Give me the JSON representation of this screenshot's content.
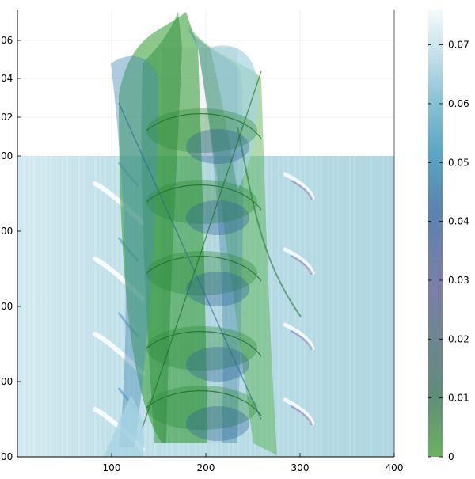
{
  "chart_data": {
    "type": "heatmap",
    "title": "",
    "xlabel": "",
    "ylabel": "",
    "xlim": [
      0,
      400
    ],
    "x_ticks": [
      {
        "value": 100,
        "label": "100"
      },
      {
        "value": 200,
        "label": "200"
      },
      {
        "value": 300,
        "label": "300"
      },
      {
        "value": 400,
        "label": "400"
      }
    ],
    "left_axis_ticks": [
      {
        "label": "06"
      },
      {
        "label": "04"
      },
      {
        "label": "02"
      },
      {
        "label": "00"
      },
      {
        "label": "00"
      },
      {
        "label": "00"
      },
      {
        "label": "00"
      },
      {
        "label": "00"
      }
    ],
    "colorbar": {
      "range": [
        0,
        0.076
      ],
      "ticks": [
        {
          "value": 0,
          "label": "0"
        },
        {
          "value": 0.01,
          "label": "0.01"
        },
        {
          "value": 0.02,
          "label": "0.02"
        },
        {
          "value": 0.03,
          "label": "0.03"
        },
        {
          "value": 0.04,
          "label": "0.04"
        },
        {
          "value": 0.05,
          "label": "0.05"
        },
        {
          "value": 0.06,
          "label": "0.06"
        },
        {
          "value": 0.07,
          "label": "0.07"
        }
      ],
      "colors": [
        "#6cb160",
        "#5f8c79",
        "#7b7fa8",
        "#5a82b0",
        "#5aa6c4",
        "#8cc3d6",
        "#c4e1ea",
        "#f4fafc"
      ]
    },
    "grid": true,
    "legend": "none",
    "surface_colors": [
      "#2e9a2e",
      "#4b8fb5",
      "#a8d4e2"
    ],
    "background_color": "#b8dce6"
  }
}
